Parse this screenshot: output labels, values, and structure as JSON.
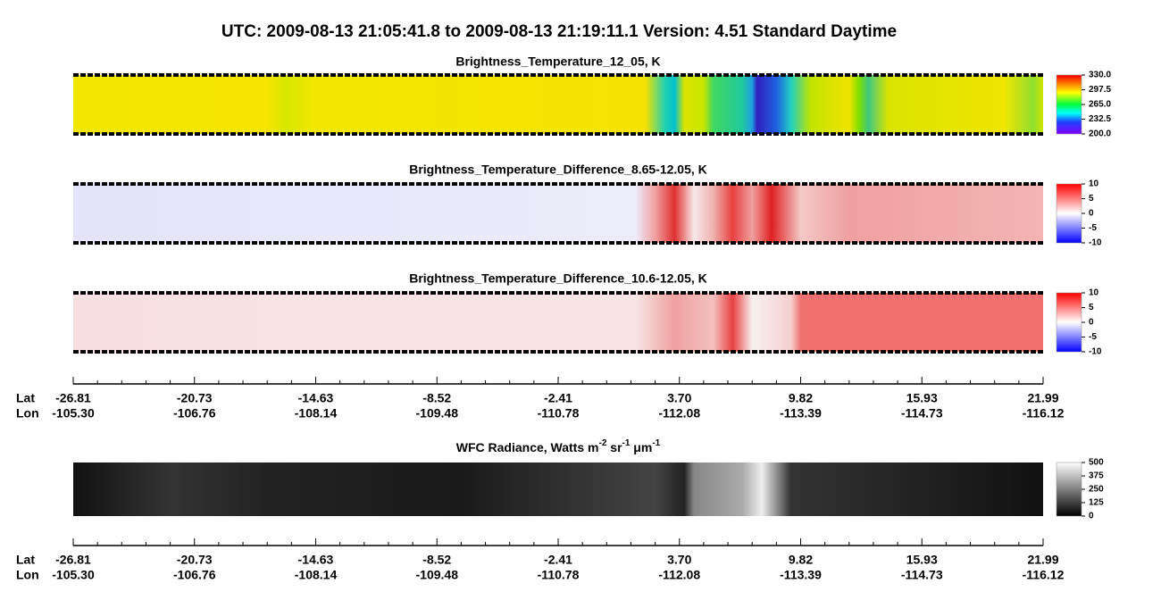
{
  "title": "UTC:  2009-08-13   21:05:41.8  to  2009-08-13   21:19:11.1    Version: 4.51  Standard Daytime",
  "panels": [
    {
      "title": "Brightness_Temperature_12_05, K",
      "clim": [
        200,
        330
      ],
      "ticks": [
        {
          "value": 330,
          "label": "330.0"
        },
        {
          "value": 297.5,
          "label": "297.5"
        },
        {
          "value": 265,
          "label": "265.0"
        },
        {
          "value": 232.5,
          "label": "232.5"
        },
        {
          "value": 200,
          "label": "200.0"
        }
      ]
    },
    {
      "title": "Brightness_Temperature_Difference_8.65-12.05, K",
      "clim": [
        -10,
        10
      ],
      "ticks": [
        10,
        5,
        0,
        -5,
        -10
      ]
    },
    {
      "title": "Brightness_Temperature_Difference_10.6-12.05, K",
      "clim": [
        -10,
        10
      ],
      "ticks": [
        10,
        5,
        0,
        -5,
        -10
      ]
    },
    {
      "title_parts": [
        "WFC Radiance, Watts m",
        "-2",
        " sr",
        "-1",
        " μm",
        "-1"
      ],
      "clim": [
        0,
        500
      ],
      "ticks": [
        500,
        375,
        250,
        125,
        0
      ]
    }
  ],
  "axis": {
    "rows": [
      {
        "name": "Lat",
        "labels": [
          "-26.81",
          "-20.73",
          "-14.63",
          "-8.52",
          "-2.41",
          "3.70",
          "9.82",
          "15.93",
          "21.99"
        ]
      },
      {
        "name": "Lon",
        "labels": [
          "-105.30",
          "-106.76",
          "-108.14",
          "-109.48",
          "-110.78",
          "-112.08",
          "-113.39",
          "-114.73",
          "-116.12"
        ]
      }
    ]
  }
}
